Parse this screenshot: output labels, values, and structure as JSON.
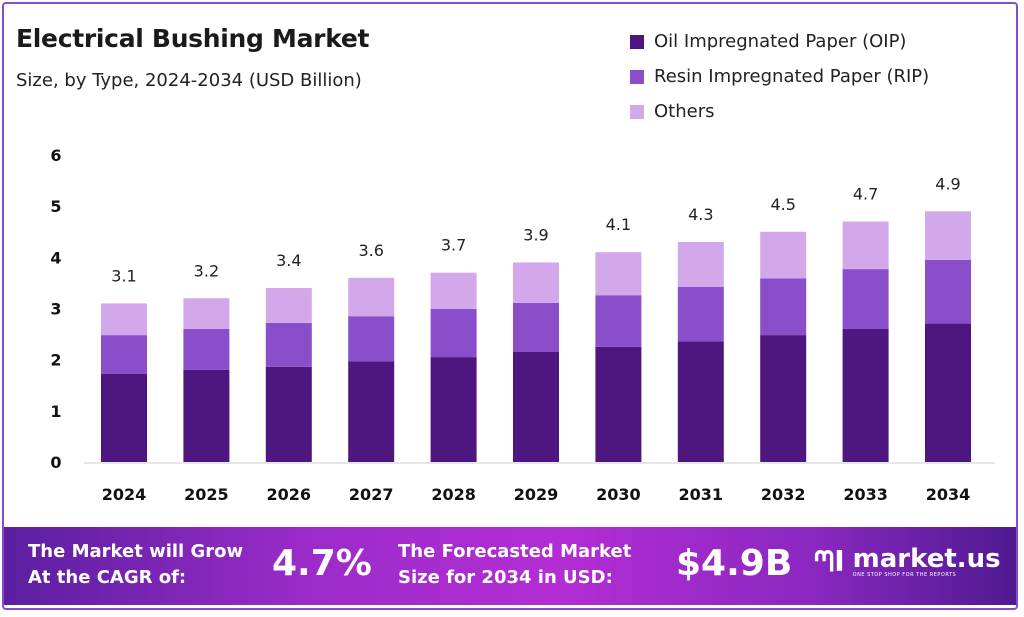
{
  "chart_data": {
    "type": "bar",
    "stacked": true,
    "title": "Electrical Bushing Market",
    "subtitle": "Size, by Type, 2024-2034 (USD Billion)",
    "xlabel": "",
    "ylabel": "",
    "ylim": [
      0,
      6
    ],
    "yticks": [
      "0",
      "1",
      "2",
      "3",
      "4",
      "5",
      "6"
    ],
    "grid": false,
    "legend_position": "top-right",
    "categories": [
      "2024",
      "2025",
      "2026",
      "2027",
      "2028",
      "2029",
      "2030",
      "2031",
      "2032",
      "2033",
      "2034"
    ],
    "totals": [
      "3.1",
      "3.2",
      "3.4",
      "3.6",
      "3.7",
      "3.9",
      "4.1",
      "4.3",
      "4.5",
      "4.7",
      "4.9"
    ],
    "series": [
      {
        "name": "Oil Impregnated Paper (OIP)",
        "color": "#4e1780",
        "values": [
          1.72,
          1.8,
          1.86,
          1.97,
          2.05,
          2.15,
          2.25,
          2.36,
          2.48,
          2.6,
          2.71
        ]
      },
      {
        "name": "Resin Impregnated Paper (RIP)",
        "color": "#8b4ecb",
        "values": [
          0.76,
          0.8,
          0.86,
          0.88,
          0.94,
          0.96,
          1.01,
          1.06,
          1.11,
          1.17,
          1.24
        ]
      },
      {
        "name": "Others",
        "color": "#d3a8ea",
        "values": [
          0.62,
          0.6,
          0.68,
          0.75,
          0.71,
          0.79,
          0.84,
          0.88,
          0.91,
          0.93,
          0.95
        ]
      }
    ]
  },
  "banner": {
    "cagr_label_1": "The Market will Grow",
    "cagr_label_2": "At the CAGR of:",
    "cagr_value": "4.7%",
    "forecast_label_1": "The Forecasted Market",
    "forecast_label_2": "Size for 2034 in USD:",
    "forecast_value": "$4.9B",
    "logo_name": "market.us",
    "logo_tagline": "ONE STOP SHOP FOR THE REPORTS"
  }
}
